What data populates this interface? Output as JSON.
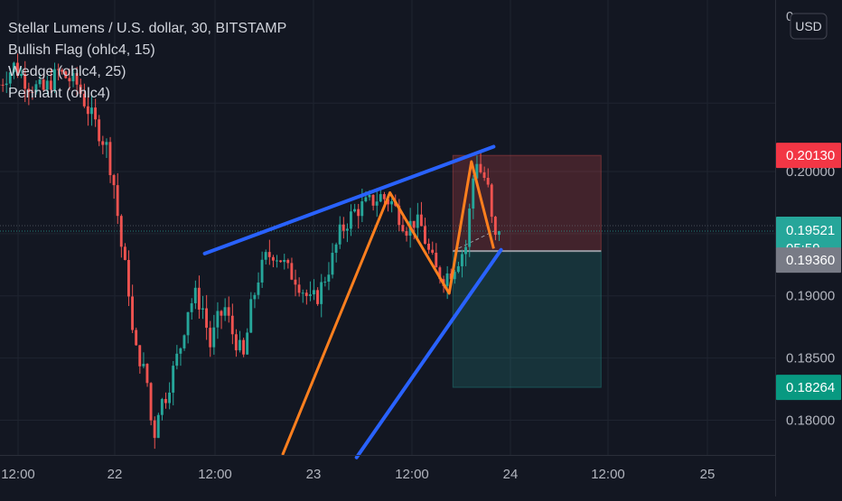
{
  "header": {
    "symbol_line": "Stellar Lumens / U.S. dollar, 30, BITSTAMP",
    "indicators": [
      "Bullish Flag (ohlc4, 15)",
      "Wedge (ohlc4, 25)",
      "Pennant (ohlc4)"
    ]
  },
  "currency_button": "USD",
  "colors": {
    "background": "#131722",
    "up_candle": "#26a69a",
    "down_candle": "#ef5350",
    "trendline": "#2962ff",
    "zigzag": "#ff7f1e",
    "stop_zone": "#ef5350",
    "target_zone": "#26a69a"
  },
  "chart_data": {
    "type": "candlestick",
    "x_axis_ticks": [
      "12:00",
      "22",
      "12:00",
      "23",
      "12:00",
      "24",
      "12:00",
      "25"
    ],
    "y_axis": {
      "ylim": [
        0.1772,
        0.2138
      ],
      "ticks": [
        "0.20000",
        "0.19000",
        "0.18500",
        "0.18000"
      ],
      "top_partial_label": "0"
    },
    "price_labels": [
      {
        "name": "stop",
        "value": "0.20130",
        "color": "#f23645"
      },
      {
        "name": "last",
        "value": "0.19521",
        "sub": "05:59",
        "color": "#26a69a"
      },
      {
        "name": "entry",
        "value": "0.19360",
        "color": "#787b86"
      },
      {
        "name": "target",
        "value": "0.18264",
        "color": "#089981"
      }
    ],
    "levels": {
      "stop": 0.2013,
      "last": 0.19521,
      "entry": 0.1936,
      "target": 0.18264
    },
    "wedge_upper_line": {
      "t": [
        56,
        134
      ],
      "y": [
        0.1934,
        0.202
      ]
    },
    "wedge_lower_line": {
      "t": [
        97,
        136
      ],
      "y": [
        0.177,
        0.1937
      ]
    },
    "zigzag": {
      "t": [
        77,
        106,
        122,
        128,
        134
      ],
      "y": [
        0.1772,
        0.1983,
        0.1902,
        0.2008,
        0.1938
      ]
    },
    "position": {
      "t_start": 123,
      "t_end": 163
    }
  }
}
